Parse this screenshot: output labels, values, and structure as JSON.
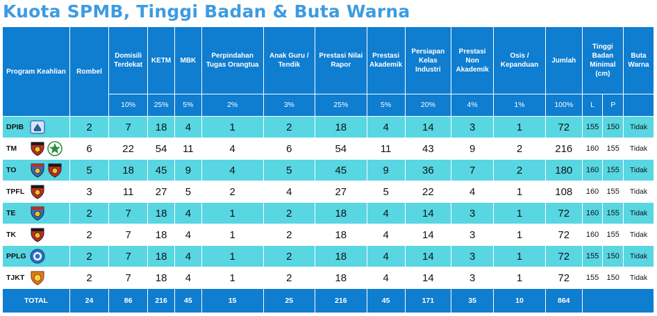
{
  "title": "Kuota SPMB, Tinggi Badan & Buta Warna",
  "header": {
    "program": "Program Keahlian",
    "rombel": "Rombel",
    "domisili": "Domisili Terdekat",
    "ketm": "KETM",
    "mbk": "MBK",
    "perpindahan": "Perpindahan Tugas Orangtua",
    "anak_guru": "Anak Guru / Tendik",
    "nilai_rapor": "Prestasi Nilai Rapor",
    "akademik": "Prestasi Akademik",
    "persiapan": "Persiapan Kelas Industri",
    "non_akademik": "Prestasi Non Akademik",
    "osis": "Osis / Kepanduan",
    "jumlah": "Jumlah",
    "tinggi": "Tinggi Badan Minimal (cm)",
    "buta_warna": "Buta Warna"
  },
  "percent": {
    "domisili": "10%",
    "ketm": "25%",
    "mbk": "5%",
    "perpindahan": "2%",
    "anak_guru": "3%",
    "nilai_rapor": "25%",
    "akademik": "5%",
    "persiapan": "20%",
    "non_akademik": "4%",
    "osis": "1%",
    "jumlah": "100%",
    "l": "L",
    "p": "P"
  },
  "rows": [
    {
      "code": "DPIB",
      "rombel": "2",
      "domisili": "7",
      "ketm": "18",
      "mbk": "4",
      "perpindahan": "1",
      "anak_guru": "2",
      "nilai_rapor": "18",
      "akademik": "4",
      "persiapan": "14",
      "non_akademik": "3",
      "osis": "1",
      "jumlah": "72",
      "l": "155",
      "p": "150",
      "buta_warna": "Tidak",
      "logos": [
        "blue-emblem"
      ]
    },
    {
      "code": "TM",
      "rombel": "6",
      "domisili": "22",
      "ketm": "54",
      "mbk": "11",
      "perpindahan": "4",
      "anak_guru": "6",
      "nilai_rapor": "54",
      "akademik": "11",
      "persiapan": "43",
      "non_akademik": "9",
      "osis": "2",
      "jumlah": "216",
      "l": "160",
      "p": "155",
      "buta_warna": "Tidak",
      "logos": [
        "red-shield",
        "green-star"
      ]
    },
    {
      "code": "TO",
      "rombel": "5",
      "domisili": "18",
      "ketm": "45",
      "mbk": "9",
      "perpindahan": "4",
      "anak_guru": "5",
      "nilai_rapor": "45",
      "akademik": "9",
      "persiapan": "36",
      "non_akademik": "7",
      "osis": "2",
      "jumlah": "180",
      "l": "160",
      "p": "155",
      "buta_warna": "Tidak",
      "logos": [
        "blue-shield",
        "red-shield"
      ]
    },
    {
      "code": "TPFL",
      "rombel": "3",
      "domisili": "11",
      "ketm": "27",
      "mbk": "5",
      "perpindahan": "2",
      "anak_guru": "4",
      "nilai_rapor": "27",
      "akademik": "5",
      "persiapan": "22",
      "non_akademik": "4",
      "osis": "1",
      "jumlah": "108",
      "l": "160",
      "p": "155",
      "buta_warna": "Tidak",
      "logos": [
        "red-shield"
      ]
    },
    {
      "code": "TE",
      "rombel": "2",
      "domisili": "7",
      "ketm": "18",
      "mbk": "4",
      "perpindahan": "1",
      "anak_guru": "2",
      "nilai_rapor": "18",
      "akademik": "4",
      "persiapan": "14",
      "non_akademik": "3",
      "osis": "1",
      "jumlah": "72",
      "l": "160",
      "p": "155",
      "buta_warna": "Tidak",
      "logos": [
        "blue-shield"
      ]
    },
    {
      "code": "TK",
      "rombel": "2",
      "domisili": "7",
      "ketm": "18",
      "mbk": "4",
      "perpindahan": "1",
      "anak_guru": "2",
      "nilai_rapor": "18",
      "akademik": "4",
      "persiapan": "14",
      "non_akademik": "3",
      "osis": "1",
      "jumlah": "72",
      "l": "160",
      "p": "155",
      "buta_warna": "Tidak",
      "logos": [
        "red-shield"
      ]
    },
    {
      "code": "PPLG",
      "rombel": "2",
      "domisili": "7",
      "ketm": "18",
      "mbk": "4",
      "perpindahan": "1",
      "anak_guru": "2",
      "nilai_rapor": "18",
      "akademik": "4",
      "persiapan": "14",
      "non_akademik": "3",
      "osis": "1",
      "jumlah": "72",
      "l": "155",
      "p": "150",
      "buta_warna": "Tidak",
      "logos": [
        "blue-circle"
      ]
    },
    {
      "code": "TJKT",
      "rombel": "2",
      "domisili": "7",
      "ketm": "18",
      "mbk": "4",
      "perpindahan": "1",
      "anak_guru": "2",
      "nilai_rapor": "18",
      "akademik": "4",
      "persiapan": "14",
      "non_akademik": "3",
      "osis": "1",
      "jumlah": "72",
      "l": "155",
      "p": "150",
      "buta_warna": "Tidak",
      "logos": [
        "orange-shield"
      ]
    }
  ],
  "total": {
    "label": "TOTAL",
    "rombel": "24",
    "domisili": "86",
    "ketm": "216",
    "mbk": "45",
    "perpindahan": "15",
    "anak_guru": "25",
    "nilai_rapor": "216",
    "akademik": "45",
    "persiapan": "171",
    "non_akademik": "35",
    "osis": "10",
    "jumlah": "864"
  },
  "colors": {
    "title": "#3e9be0",
    "header_bg": "#0f7dd0",
    "row_alt": "#58d6e2",
    "row_white": "#ffffff"
  }
}
